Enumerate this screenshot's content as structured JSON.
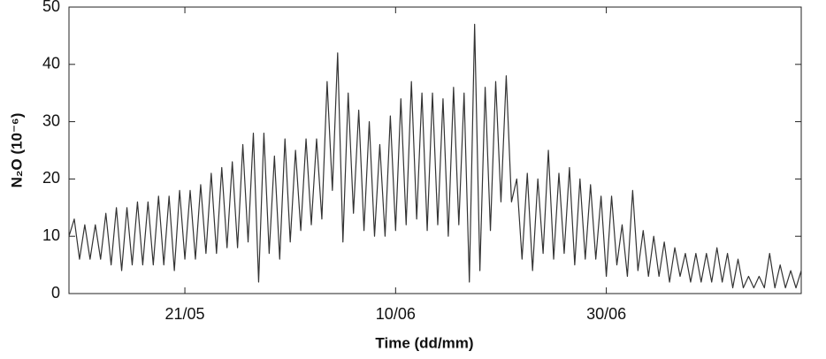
{
  "chart_data": {
    "type": "line",
    "x_label": "Time (dd/mm)",
    "y_label": "N₂O (10⁻⁶)",
    "categories": [
      null,
      null,
      null,
      null,
      null,
      null,
      null,
      null,
      null,
      null,
      null,
      null,
      null,
      null,
      null,
      null,
      null,
      null,
      null,
      null,
      null,
      null,
      "21/05",
      null,
      null,
      null,
      null,
      null,
      null,
      null,
      null,
      null,
      null,
      null,
      null,
      null,
      null,
      null,
      null,
      null,
      null,
      null,
      null,
      null,
      null,
      null,
      null,
      null,
      null,
      null,
      null,
      null,
      null,
      null,
      null,
      null,
      null,
      null,
      null,
      null,
      null,
      null,
      "10/06",
      null,
      null,
      null,
      null,
      null,
      null,
      null,
      null,
      null,
      null,
      null,
      null,
      null,
      null,
      null,
      null,
      null,
      null,
      null,
      null,
      null,
      null,
      null,
      null,
      null,
      null,
      null,
      null,
      null,
      null,
      null,
      null,
      null,
      null,
      null,
      null,
      null,
      null,
      null,
      "30/06",
      null,
      null,
      null,
      null,
      null,
      null,
      null,
      null,
      null,
      null,
      null,
      null,
      null,
      null,
      null,
      null,
      null,
      null,
      null,
      null,
      null,
      null,
      null,
      null,
      null,
      null,
      null,
      null,
      null,
      null,
      null,
      null,
      null,
      null,
      null,
      null,
      null
    ],
    "values": [
      10,
      13,
      6,
      12,
      6,
      12,
      6,
      14,
      5,
      15,
      4,
      15,
      5,
      16,
      5,
      16,
      5,
      17,
      5,
      17,
      4,
      18,
      6,
      18,
      6,
      19,
      7,
      21,
      7,
      22,
      8,
      23,
      8,
      26,
      9,
      28,
      2,
      28,
      7,
      24,
      6,
      27,
      9,
      25,
      11,
      27,
      12,
      27,
      13,
      37,
      18,
      42,
      9,
      35,
      14,
      32,
      11,
      30,
      10,
      26,
      10,
      31,
      11,
      34,
      12,
      37,
      13,
      35,
      11,
      35,
      12,
      34,
      10,
      36,
      12,
      35,
      2,
      47,
      4,
      36,
      11,
      37,
      16,
      38,
      16,
      20,
      6,
      21,
      4,
      20,
      7,
      25,
      6,
      21,
      7,
      22,
      5,
      20,
      6,
      19,
      6,
      17,
      3,
      17,
      5,
      12,
      3,
      18,
      4,
      11,
      3,
      10,
      3,
      9,
      2,
      8,
      3,
      7,
      2,
      7,
      2,
      7,
      2,
      8,
      2,
      7,
      1,
      6,
      1,
      3,
      1,
      3,
      1,
      7,
      1,
      5,
      1,
      4,
      1,
      4
    ],
    "color": "#333333",
    "ylim": [
      0,
      50
    ],
    "yticks": [
      0,
      10,
      20,
      30,
      40,
      50
    ]
  }
}
